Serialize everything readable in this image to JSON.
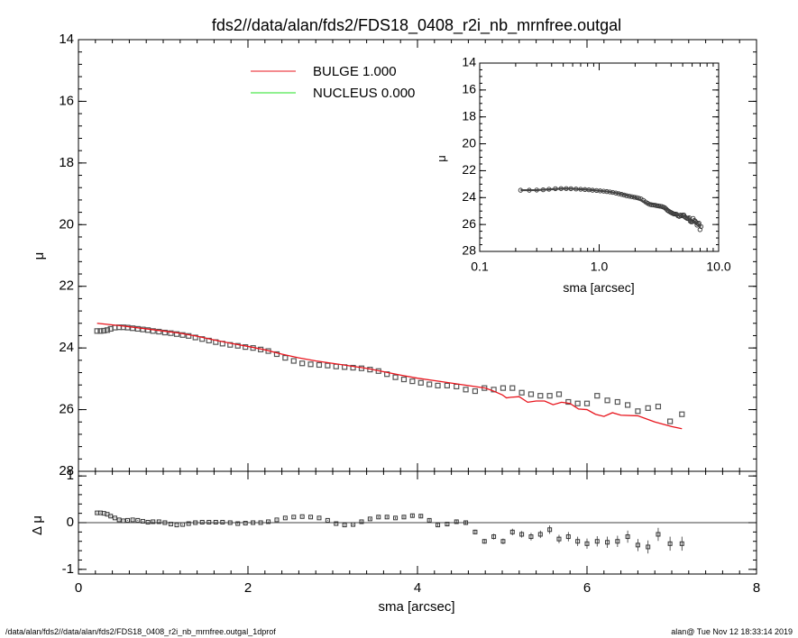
{
  "title": "fds2//data/alan/fds2/FDS18_0408_r2i_nb_mrnfree.outgal",
  "footer": {
    "left": "/data/alan/fds2//data/alan/fds2/FDS18_0408_r2i_nb_mrnfree.outgal_1dprof",
    "right": "alan@  Tue Nov 12 18:33:14 2019"
  },
  "colors": {
    "bulge": "#e8141c",
    "nucleus": "#22e022",
    "points": "#555555"
  },
  "legend": [
    {
      "label": "BULGE  1.000",
      "color": "#e8141c"
    },
    {
      "label": "NUCLEUS  0.000",
      "color": "#22e022"
    }
  ],
  "chart_data": [
    {
      "type": "scatter",
      "panel": "main",
      "xlabel": "",
      "ylabel": "μ",
      "xlim": [
        0,
        8
      ],
      "ylim": [
        28,
        14
      ],
      "y_inverted": true,
      "yticks": [
        "14",
        "16",
        "18",
        "20",
        "22",
        "24",
        "26",
        "28"
      ],
      "legend_position": "top-center",
      "series": [
        {
          "name": "",
          "kind": "points",
          "x": [
            0.22,
            0.26,
            0.3,
            0.34,
            0.38,
            0.43,
            0.48,
            0.53,
            0.58,
            0.64,
            0.7,
            0.76,
            0.82,
            0.88,
            0.95,
            1.02,
            1.09,
            1.16,
            1.23,
            1.3,
            1.38,
            1.46,
            1.54,
            1.62,
            1.7,
            1.79,
            1.88,
            1.97,
            2.06,
            2.15,
            2.24,
            2.34,
            2.44,
            2.54,
            2.64,
            2.74,
            2.84,
            2.94,
            3.04,
            3.14,
            3.24,
            3.34,
            3.44,
            3.54,
            3.64,
            3.74,
            3.84,
            3.94,
            4.04,
            4.14,
            4.24,
            4.35,
            4.46,
            4.57,
            4.68,
            4.79,
            4.9,
            5.01,
            5.12,
            5.23,
            5.34,
            5.45,
            5.56,
            5.67,
            5.78,
            5.89,
            6.0,
            6.12,
            6.24,
            6.36,
            6.48,
            6.6,
            6.72,
            6.84,
            6.98,
            7.12
          ],
          "y": [
            23.45,
            23.45,
            23.44,
            23.42,
            23.38,
            23.34,
            23.33,
            23.33,
            23.34,
            23.36,
            23.38,
            23.4,
            23.42,
            23.45,
            23.47,
            23.5,
            23.52,
            23.55,
            23.58,
            23.61,
            23.66,
            23.71,
            23.76,
            23.81,
            23.86,
            23.9,
            23.93,
            23.97,
            24.0,
            24.05,
            24.1,
            24.2,
            24.32,
            24.42,
            24.5,
            24.53,
            24.55,
            24.57,
            24.6,
            24.62,
            24.64,
            24.66,
            24.7,
            24.75,
            24.85,
            24.95,
            25.02,
            25.08,
            25.13,
            25.18,
            25.22,
            25.22,
            25.25,
            25.35,
            25.4,
            25.3,
            25.35,
            25.3,
            25.3,
            25.45,
            25.5,
            25.55,
            25.55,
            25.5,
            25.75,
            25.8,
            25.8,
            25.55,
            25.7,
            25.75,
            25.85,
            26.05,
            25.95,
            25.9,
            26.38,
            26.15
          ]
        },
        {
          "name": "BULGE  1.000",
          "kind": "line",
          "x": [
            0.22,
            0.5,
            0.8,
            1.0,
            1.2,
            1.4,
            1.6,
            1.8,
            2.0,
            2.2,
            2.4,
            2.6,
            2.8,
            3.0,
            3.2,
            3.4,
            3.6,
            3.8,
            4.0,
            4.2,
            4.4,
            4.6,
            4.8,
            4.9,
            5.0,
            5.05,
            5.1,
            5.2,
            5.3,
            5.4,
            5.5,
            5.6,
            5.7,
            5.8,
            5.9,
            6.0,
            6.1,
            6.2,
            6.3,
            6.4,
            6.6,
            6.8,
            7.0,
            7.12
          ],
          "y": [
            23.2,
            23.28,
            23.38,
            23.45,
            23.52,
            23.62,
            23.74,
            23.85,
            23.95,
            24.06,
            24.2,
            24.32,
            24.42,
            24.5,
            24.58,
            24.66,
            24.77,
            24.88,
            24.98,
            25.06,
            25.14,
            25.22,
            25.3,
            25.4,
            25.52,
            25.62,
            25.6,
            25.58,
            25.76,
            25.72,
            25.72,
            25.84,
            25.76,
            25.8,
            25.98,
            26.0,
            26.15,
            26.22,
            26.1,
            26.18,
            26.2,
            26.4,
            26.55,
            26.62
          ]
        },
        {
          "name": "NUCLEUS  0.000",
          "kind": "line",
          "x": [],
          "y": []
        }
      ]
    },
    {
      "type": "scatter",
      "panel": "residual",
      "xlabel": "sma [arcsec]",
      "ylabel": "Δ μ",
      "xlim": [
        0,
        8
      ],
      "ylim": [
        -1.1,
        1.1
      ],
      "xticks": [
        "0",
        "2",
        "4",
        "6",
        "8"
      ],
      "yticks": [
        "1",
        "0",
        "-1"
      ],
      "zero_line": true,
      "series": [
        {
          "name": "",
          "kind": "points_with_errorbars",
          "x": [
            0.22,
            0.26,
            0.3,
            0.34,
            0.38,
            0.43,
            0.48,
            0.53,
            0.58,
            0.64,
            0.7,
            0.76,
            0.82,
            0.88,
            0.95,
            1.02,
            1.09,
            1.16,
            1.23,
            1.3,
            1.38,
            1.46,
            1.54,
            1.62,
            1.7,
            1.79,
            1.88,
            1.97,
            2.06,
            2.15,
            2.24,
            2.34,
            2.44,
            2.54,
            2.64,
            2.74,
            2.84,
            2.94,
            3.04,
            3.14,
            3.24,
            3.34,
            3.44,
            3.54,
            3.64,
            3.74,
            3.84,
            3.94,
            4.04,
            4.14,
            4.24,
            4.35,
            4.46,
            4.57,
            4.68,
            4.79,
            4.9,
            5.01,
            5.12,
            5.23,
            5.34,
            5.45,
            5.56,
            5.67,
            5.78,
            5.89,
            6.0,
            6.12,
            6.24,
            6.36,
            6.48,
            6.6,
            6.72,
            6.84,
            6.98,
            7.12
          ],
          "y": [
            0.21,
            0.21,
            0.2,
            0.18,
            0.14,
            0.1,
            0.06,
            0.04,
            0.05,
            0.06,
            0.05,
            0.03,
            0.01,
            0.02,
            0.02,
            0.0,
            -0.03,
            -0.05,
            -0.04,
            -0.02,
            0.0,
            0.01,
            0.01,
            0.01,
            0.01,
            0.0,
            -0.02,
            -0.01,
            0.0,
            0.0,
            0.02,
            0.06,
            0.1,
            0.12,
            0.13,
            0.12,
            0.1,
            0.05,
            -0.02,
            -0.05,
            -0.04,
            0.02,
            0.08,
            0.12,
            0.12,
            0.1,
            0.12,
            0.15,
            0.14,
            0.05,
            -0.05,
            -0.03,
            0.02,
            0.0,
            -0.2,
            -0.4,
            -0.3,
            -0.4,
            -0.2,
            -0.25,
            -0.3,
            -0.25,
            -0.15,
            -0.35,
            -0.3,
            -0.4,
            -0.45,
            -0.4,
            -0.42,
            -0.4,
            -0.3,
            -0.48,
            -0.52,
            -0.25,
            -0.45,
            -0.45
          ],
          "err": [
            0.01,
            0.01,
            0.01,
            0.01,
            0.01,
            0.01,
            0.01,
            0.01,
            0.01,
            0.01,
            0.01,
            0.01,
            0.01,
            0.01,
            0.01,
            0.01,
            0.01,
            0.01,
            0.01,
            0.01,
            0.01,
            0.01,
            0.01,
            0.01,
            0.01,
            0.01,
            0.01,
            0.01,
            0.01,
            0.01,
            0.01,
            0.01,
            0.01,
            0.01,
            0.01,
            0.01,
            0.01,
            0.01,
            0.01,
            0.02,
            0.02,
            0.02,
            0.02,
            0.02,
            0.02,
            0.02,
            0.02,
            0.03,
            0.03,
            0.03,
            0.03,
            0.04,
            0.04,
            0.04,
            0.05,
            0.05,
            0.06,
            0.06,
            0.07,
            0.07,
            0.08,
            0.08,
            0.09,
            0.09,
            0.1,
            0.1,
            0.11,
            0.11,
            0.12,
            0.12,
            0.13,
            0.13,
            0.14,
            0.14,
            0.15,
            0.15
          ]
        }
      ]
    },
    {
      "type": "scatter",
      "panel": "inset",
      "xlabel": "sma [arcsec]",
      "ylabel": "μ",
      "x_scale": "log",
      "xlim": [
        0.1,
        10.0
      ],
      "ylim": [
        28,
        14
      ],
      "y_inverted": true,
      "xticks": [
        "0.1",
        "1.0",
        "10.0"
      ],
      "yticks": [
        "14",
        "16",
        "18",
        "20",
        "22",
        "24",
        "26",
        "28"
      ],
      "series": [
        {
          "name": "",
          "kind": "points",
          "x": [
            0.22,
            0.26,
            0.3,
            0.34,
            0.38,
            0.43,
            0.48,
            0.53,
            0.58,
            0.64,
            0.7,
            0.76,
            0.82,
            0.88,
            0.95,
            1.02,
            1.09,
            1.16,
            1.23,
            1.3,
            1.38,
            1.46,
            1.54,
            1.62,
            1.7,
            1.79,
            1.88,
            1.97,
            2.06,
            2.15,
            2.24,
            2.34,
            2.44,
            2.54,
            2.64,
            2.74,
            2.84,
            2.94,
            3.04,
            3.14,
            3.24,
            3.34,
            3.44,
            3.54,
            3.64,
            3.74,
            3.84,
            3.94,
            4.04,
            4.14,
            4.24,
            4.35,
            4.46,
            4.57,
            4.68,
            4.79,
            4.9,
            5.01,
            5.12,
            5.23,
            5.34,
            5.45,
            5.56,
            5.67,
            5.78,
            5.89,
            6.0,
            6.12,
            6.24,
            6.36,
            6.48,
            6.6,
            6.72,
            6.84,
            6.98,
            7.12
          ],
          "y": [
            23.45,
            23.45,
            23.44,
            23.42,
            23.38,
            23.34,
            23.33,
            23.33,
            23.34,
            23.36,
            23.38,
            23.4,
            23.42,
            23.45,
            23.47,
            23.5,
            23.52,
            23.55,
            23.58,
            23.61,
            23.66,
            23.71,
            23.76,
            23.81,
            23.86,
            23.9,
            23.93,
            23.97,
            24.0,
            24.05,
            24.1,
            24.2,
            24.32,
            24.42,
            24.5,
            24.53,
            24.55,
            24.57,
            24.6,
            24.62,
            24.64,
            24.66,
            24.7,
            24.75,
            24.85,
            24.95,
            25.02,
            25.08,
            25.13,
            25.18,
            25.22,
            25.22,
            25.25,
            25.35,
            25.4,
            25.3,
            25.35,
            25.3,
            25.3,
            25.45,
            25.5,
            25.55,
            25.55,
            25.5,
            25.75,
            25.8,
            25.8,
            25.55,
            25.7,
            25.75,
            25.85,
            26.05,
            25.95,
            25.9,
            26.38,
            26.15
          ]
        },
        {
          "name": "",
          "kind": "line",
          "x": [
            0.22,
            0.3,
            0.4,
            0.5,
            0.6,
            0.8,
            1.0,
            1.2,
            1.5,
            2.0,
            2.5,
            3.0,
            3.5,
            4.0,
            4.5,
            5.0,
            5.5,
            6.0,
            6.5,
            7.12
          ],
          "y": [
            23.45,
            23.44,
            23.38,
            23.33,
            23.34,
            23.41,
            23.49,
            23.56,
            23.72,
            23.98,
            24.42,
            24.58,
            24.74,
            25.1,
            25.25,
            25.35,
            25.5,
            25.8,
            25.85,
            26.15
          ]
        }
      ]
    }
  ]
}
